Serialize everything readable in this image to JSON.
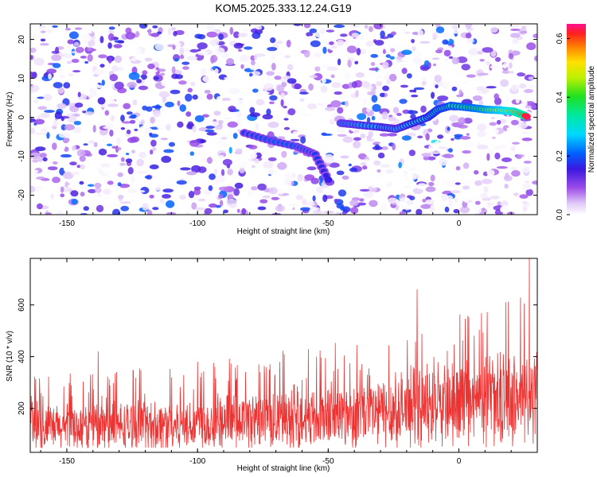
{
  "title": "KOM5.2025.333.12.24.G19",
  "chart_data": [
    {
      "type": "heatmap",
      "name": "spectrogram",
      "xlabel": "Height of straight line (km)",
      "ylabel": "Frequency (Hz)",
      "xlim": [
        -164,
        30
      ],
      "ylim": [
        -25,
        24
      ],
      "xticks": [
        -150,
        -100,
        -50,
        0
      ],
      "yticks": [
        -20,
        -10,
        0,
        10,
        20
      ],
      "colorbar": {
        "label": "Normalized spectral amplitude",
        "range": [
          0.0,
          0.65
        ],
        "ticks": [
          0.0,
          0.2,
          0.4,
          0.6
        ]
      },
      "ridge": [
        {
          "x": -45,
          "y": -1.5,
          "a": 0.22
        },
        {
          "x": -38,
          "y": -2.0,
          "a": 0.24
        },
        {
          "x": -30,
          "y": -2.5,
          "a": 0.26
        },
        {
          "x": -24,
          "y": -3.0,
          "a": 0.25
        },
        {
          "x": -18,
          "y": -1.5,
          "a": 0.28
        },
        {
          "x": -12,
          "y": 0.0,
          "a": 0.3
        },
        {
          "x": -8,
          "y": 2.0,
          "a": 0.32
        },
        {
          "x": -3,
          "y": 3.0,
          "a": 0.35
        },
        {
          "x": 4,
          "y": 2.5,
          "a": 0.38
        },
        {
          "x": 10,
          "y": 2.0,
          "a": 0.42
        },
        {
          "x": 16,
          "y": 1.8,
          "a": 0.48
        },
        {
          "x": 21,
          "y": 1.5,
          "a": 0.55
        },
        {
          "x": 26,
          "y": 0.2,
          "a": 0.63
        }
      ],
      "secondary_ridge": [
        {
          "x": -82,
          "y": -4.0,
          "a": 0.18
        },
        {
          "x": -72,
          "y": -6.0,
          "a": 0.2
        },
        {
          "x": -62,
          "y": -7.5,
          "a": 0.2
        },
        {
          "x": -55,
          "y": -9.5,
          "a": 0.18
        },
        {
          "x": -50,
          "y": -16.0,
          "a": 0.16
        }
      ]
    },
    {
      "type": "line",
      "name": "snr",
      "xlabel": "Height of straight line (km)",
      "ylabel": "SNR (10 * v/v)",
      "xlim": [
        -164,
        30
      ],
      "ylim": [
        30,
        780
      ],
      "xticks": [
        -150,
        -100,
        -50,
        0
      ],
      "yticks": [
        200,
        400,
        600
      ],
      "color": "#ee3333",
      "trend": [
        {
          "x": -164,
          "y": 120
        },
        {
          "x": -100,
          "y": 140
        },
        {
          "x": -50,
          "y": 170
        },
        {
          "x": 0,
          "y": 210
        },
        {
          "x": 30,
          "y": 250
        }
      ],
      "peaks": [
        {
          "x": -138,
          "y": 420
        },
        {
          "x": -100,
          "y": 380
        },
        {
          "x": -76,
          "y": 340
        },
        {
          "x": -60,
          "y": 310
        },
        {
          "x": -35,
          "y": 330
        },
        {
          "x": -16,
          "y": 660
        },
        {
          "x": 18,
          "y": 610
        },
        {
          "x": 27,
          "y": 780
        }
      ]
    }
  ]
}
